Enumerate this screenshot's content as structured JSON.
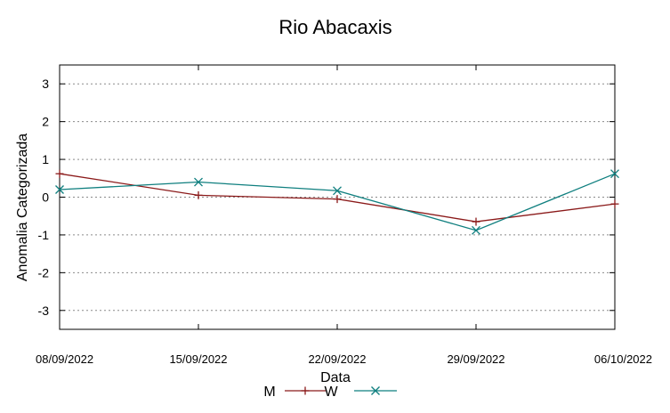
{
  "chart_data": {
    "type": "line",
    "title": "Rio Abacaxis",
    "xlabel": "Data",
    "ylabel": "Anomalia Categorizada",
    "categories": [
      "08/09/2022",
      "15/09/2022",
      "22/09/2022",
      "29/09/2022",
      "06/10/2022"
    ],
    "ylim": [
      -3.5,
      3.5
    ],
    "yticks": [
      -3,
      -2,
      -1,
      0,
      1,
      2,
      3
    ],
    "grid": true,
    "legend_position": "bottom-center",
    "series": [
      {
        "name": "M",
        "values": [
          0.62,
          0.05,
          -0.05,
          -0.65,
          -0.18
        ],
        "color": "#8b1a1a",
        "marker": "plus"
      },
      {
        "name": "W",
        "values": [
          0.2,
          0.4,
          0.17,
          -0.88,
          0.62
        ],
        "color": "#0f7f7f",
        "marker": "cross"
      }
    ]
  }
}
